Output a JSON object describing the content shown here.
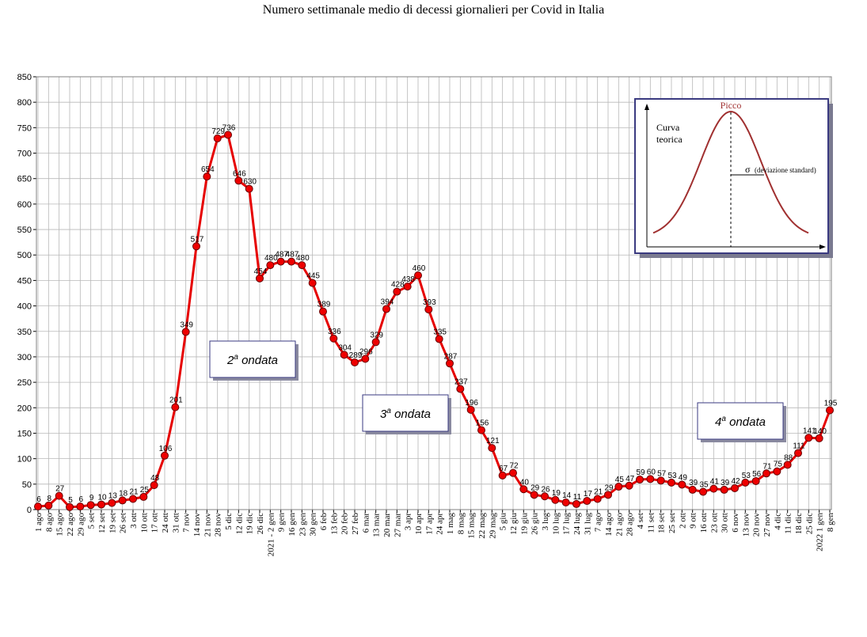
{
  "chart_data": {
    "type": "line",
    "title": "Numero settimanale medio di decessi giornalieri per Covid in Italia",
    "ylim": [
      0,
      850
    ],
    "yticks": [
      0,
      50,
      100,
      150,
      200,
      250,
      300,
      350,
      400,
      450,
      500,
      550,
      600,
      650,
      700,
      750,
      800,
      850
    ],
    "grid": true,
    "colors": {
      "line": "#e60000",
      "marker_fill": "#ee0000",
      "marker_stroke": "#660000",
      "grid": "#b8b8b8"
    },
    "x": [
      "1 ago",
      "8 ago",
      "15 ago",
      "22 ago",
      "29 ago",
      "5 set",
      "12 set",
      "19 set",
      "26 set",
      "3 ott",
      "10 ott",
      "17 ott",
      "24 ott",
      "31 ott",
      "7 nov",
      "14 nov",
      "21 nov",
      "28 nov",
      "5 dic",
      "12 dic",
      "19 dic",
      "26 dic",
      "2021 - 2 gen",
      "9 gen",
      "16 gen",
      "23 gen",
      "30 gen",
      "6 feb",
      "13 feb",
      "20 feb",
      "27 feb",
      "6 mar",
      "13 mar",
      "20 mar",
      "27 mar",
      "3 apr",
      "10 apr",
      "17 apr",
      "24 apr",
      "1 mag",
      "8 mag",
      "15 mag",
      "22 mag",
      "29 mag",
      "5 giu",
      "12 giu",
      "19 giu",
      "26 giu",
      "3 lug",
      "10 lug",
      "17 lug",
      "24 lug",
      "31 lug",
      "7 ago",
      "14 ago",
      "21 ago",
      "28 ago",
      "4 set",
      "11 set",
      "18 set",
      "25 set",
      "2 ott",
      "9 ott",
      "16 ott",
      "23 ott",
      "30 ott",
      "6 nov",
      "13 nov",
      "20 nov",
      "27 nov",
      "4 dic",
      "11 dic",
      "18 dic",
      "25 dic",
      "2022 1 gen",
      "8 gen"
    ],
    "values": [
      6,
      8,
      27,
      5,
      6,
      9,
      10,
      13,
      18,
      21,
      25,
      48,
      106,
      201,
      349,
      517,
      654,
      729,
      736,
      646,
      630,
      454,
      480,
      487,
      487,
      480,
      445,
      389,
      336,
      304,
      289,
      296,
      329,
      394,
      428,
      438,
      460,
      393,
      335,
      287,
      237,
      196,
      156,
      121,
      67,
      72,
      40,
      29,
      26,
      19,
      14,
      11,
      17,
      21,
      29,
      45,
      47,
      59,
      60,
      57,
      53,
      49,
      39,
      35,
      41,
      39,
      42,
      53,
      56,
      71,
      75,
      88,
      111,
      141,
      140,
      195
    ],
    "value_labels": [
      "6",
      "8",
      "27",
      "5",
      "6",
      "9",
      "10",
      "13",
      "18",
      "21",
      "25",
      "48",
      "106",
      "201",
      "349",
      "517",
      "654",
      "729",
      "736",
      "646",
      "630",
      "454",
      "480",
      "487",
      "487",
      "480",
      "445",
      "389",
      "336",
      "304",
      "289",
      "296",
      "329",
      "394",
      "428",
      "438",
      "460",
      "393",
      "335",
      "287",
      "237",
      "196",
      "156",
      "121",
      "67",
      "72",
      "40",
      "29",
      "26",
      "19",
      "14",
      "11",
      "17",
      "21",
      "29",
      "45",
      "47",
      "59",
      "60",
      "57",
      "53",
      "49",
      "39",
      "35",
      "41",
      "39",
      "42",
      "53",
      "56",
      "71",
      "75",
      "88",
      "111",
      "141",
      "140",
      "195"
    ],
    "annotations": [
      {
        "text_main": "2",
        "text_sup": "a",
        "text_rest": " ondata"
      },
      {
        "text_main": "3",
        "text_sup": "a",
        "text_rest": " ondata"
      },
      {
        "text_main": "4",
        "text_sup": "a",
        "text_rest": " ondata"
      }
    ],
    "inset": {
      "label_curve_1": "Curva",
      "label_curve_2": "teorica",
      "label_peak": "Picco",
      "label_sigma_symbol": "σ",
      "label_sigma": "(deviazione standard)"
    }
  }
}
